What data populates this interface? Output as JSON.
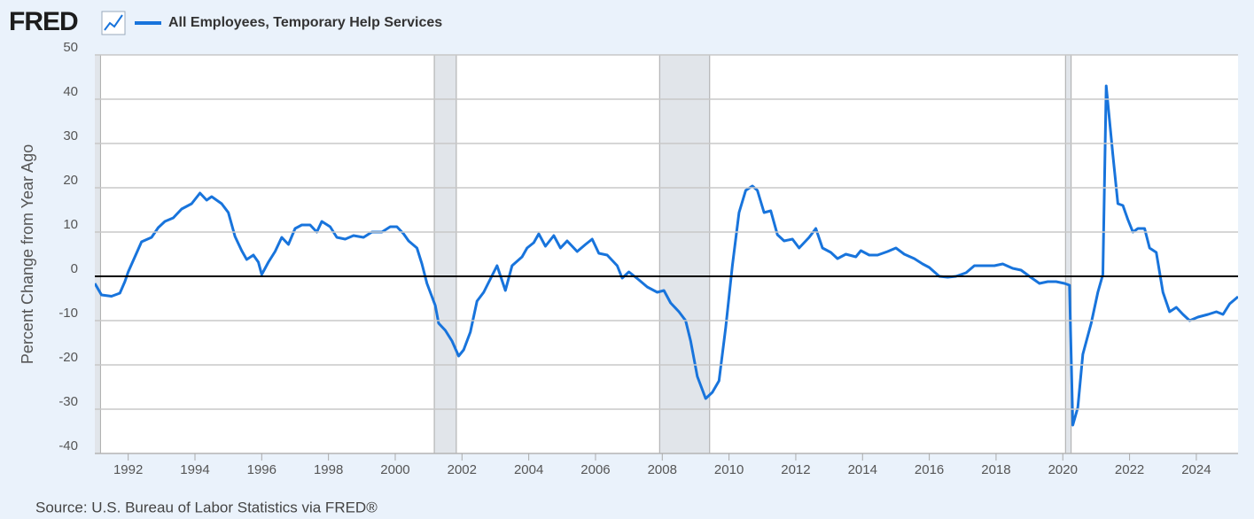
{
  "chart_data": {
    "type": "line",
    "logo": "FRED",
    "source": "Source: U.S. Bureau of Labor Statistics via FRED®",
    "ylabel": "Percent Change from Year Ago",
    "xlim": [
      1991,
      2025.25
    ],
    "ylim": [
      -40,
      50
    ],
    "xticks": [
      1992,
      1994,
      1996,
      1998,
      2000,
      2002,
      2004,
      2006,
      2008,
      2010,
      2012,
      2014,
      2016,
      2018,
      2020,
      2022,
      2024
    ],
    "yticks": [
      -40,
      -30,
      -20,
      -10,
      0,
      10,
      20,
      30,
      40,
      50
    ],
    "grid": true,
    "reference_line": 0,
    "recessions": [
      [
        1990.58,
        1991.17
      ],
      [
        2001.17,
        2001.83
      ],
      [
        2007.92,
        2009.42
      ],
      [
        2020.08,
        2020.25
      ]
    ],
    "x": [
      1991.0,
      1991.2,
      1991.5,
      1991.75,
      1991.9,
      1992.0,
      1992.2,
      1992.4,
      1992.7,
      1992.9,
      1993.1,
      1993.35,
      1993.6,
      1993.9,
      1994.15,
      1994.35,
      1994.5,
      1994.8,
      1995.0,
      1995.2,
      1995.4,
      1995.55,
      1995.75,
      1995.9,
      1996.0,
      1996.2,
      1996.4,
      1996.6,
      1996.8,
      1997.0,
      1997.2,
      1997.45,
      1997.65,
      1997.8,
      1998.05,
      1998.25,
      1998.5,
      1998.75,
      1999.05,
      1999.3,
      1999.6,
      1999.85,
      2000.05,
      2000.25,
      2000.4,
      2000.65,
      2000.8,
      2000.95,
      2001.2,
      2001.3,
      2001.5,
      2001.7,
      2001.9,
      2002.05,
      2002.25,
      2002.45,
      2002.65,
      2002.85,
      2003.05,
      2003.3,
      2003.5,
      2003.8,
      2003.95,
      2004.15,
      2004.3,
      2004.5,
      2004.75,
      2004.95,
      2005.15,
      2005.45,
      2005.7,
      2005.9,
      2006.1,
      2006.35,
      2006.65,
      2006.8,
      2007.0,
      2007.3,
      2007.55,
      2007.85,
      2008.05,
      2008.25,
      2008.5,
      2008.7,
      2008.85,
      2009.05,
      2009.3,
      2009.5,
      2009.7,
      2009.9,
      2010.1,
      2010.3,
      2010.5,
      2010.7,
      2010.85,
      2011.05,
      2011.25,
      2011.45,
      2011.65,
      2011.9,
      2012.1,
      2012.4,
      2012.6,
      2012.8,
      2013.05,
      2013.25,
      2013.5,
      2013.8,
      2013.95,
      2014.2,
      2014.45,
      2014.75,
      2015.0,
      2015.25,
      2015.55,
      2015.8,
      2016.0,
      2016.3,
      2016.55,
      2016.8,
      2017.1,
      2017.35,
      2017.7,
      2017.95,
      2018.2,
      2018.5,
      2018.75,
      2019.0,
      2019.3,
      2019.55,
      2019.8,
      2020.05,
      2020.2,
      2020.3,
      2020.45,
      2020.6,
      2020.85,
      2021.05,
      2021.2,
      2021.3,
      2021.5,
      2021.65,
      2021.8,
      2021.95,
      2022.1,
      2022.25,
      2022.45,
      2022.6,
      2022.8,
      2023.0,
      2023.2,
      2023.4,
      2023.6,
      2023.8,
      2024.05,
      2024.35,
      2024.6,
      2024.8,
      2025.0,
      2025.25
    ],
    "series": [
      {
        "name": "All Employees, Temporary Help Services",
        "color": "#1874dc",
        "values": [
          -1.6,
          -4.2,
          -4.5,
          -3.8,
          -1.2,
          1,
          4.4,
          7.8,
          8.8,
          11,
          12.4,
          13.2,
          15.2,
          16.4,
          18.8,
          17.2,
          18,
          16.4,
          14.4,
          9,
          5.8,
          3.8,
          4.8,
          3.2,
          0.4,
          3.2,
          5.6,
          8.8,
          7.2,
          10.8,
          11.6,
          11.6,
          10,
          12.4,
          11.2,
          8.8,
          8.4,
          9.2,
          8.8,
          10,
          10,
          11.2,
          11.2,
          9.6,
          8,
          6.4,
          2.8,
          -1.6,
          -6.6,
          -10.6,
          -12.2,
          -14.6,
          -18,
          -16.6,
          -12.6,
          -5.6,
          -3.6,
          -0.6,
          2.4,
          -3.2,
          2.4,
          4.4,
          6.4,
          7.6,
          9.6,
          6.8,
          9.2,
          6.4,
          8,
          5.6,
          7.2,
          8.4,
          5.2,
          4.8,
          2.4,
          -0.4,
          1,
          -0.8,
          -2.4,
          -3.6,
          -3.2,
          -6,
          -8,
          -10,
          -14.6,
          -22.6,
          -27.6,
          -26.2,
          -23.6,
          -11.6,
          2.4,
          14.4,
          19.4,
          20.4,
          19.4,
          14.4,
          14.8,
          9.4,
          8,
          8.4,
          6.4,
          8.8,
          10.8,
          6.4,
          5.4,
          4,
          5,
          4.4,
          5.8,
          4.8,
          4.8,
          5.6,
          6.4,
          5,
          4,
          2.8,
          2,
          0,
          -0.2,
          0,
          0.8,
          2.4,
          2.4,
          2.4,
          2.8,
          1.8,
          1.4,
          0,
          -1.6,
          -1.2,
          -1.2,
          -1.6,
          -2,
          -33.6,
          -29.6,
          -17.6,
          -10.6,
          -3.6,
          0.4,
          43,
          27.4,
          16.4,
          16,
          12.8,
          10,
          10.8,
          10.8,
          6.4,
          5.4,
          -3.6,
          -8,
          -7,
          -8.6,
          -10,
          -9.2,
          -8.6,
          -8,
          -8.6,
          -6.2,
          -4.6
        ]
      }
    ]
  }
}
